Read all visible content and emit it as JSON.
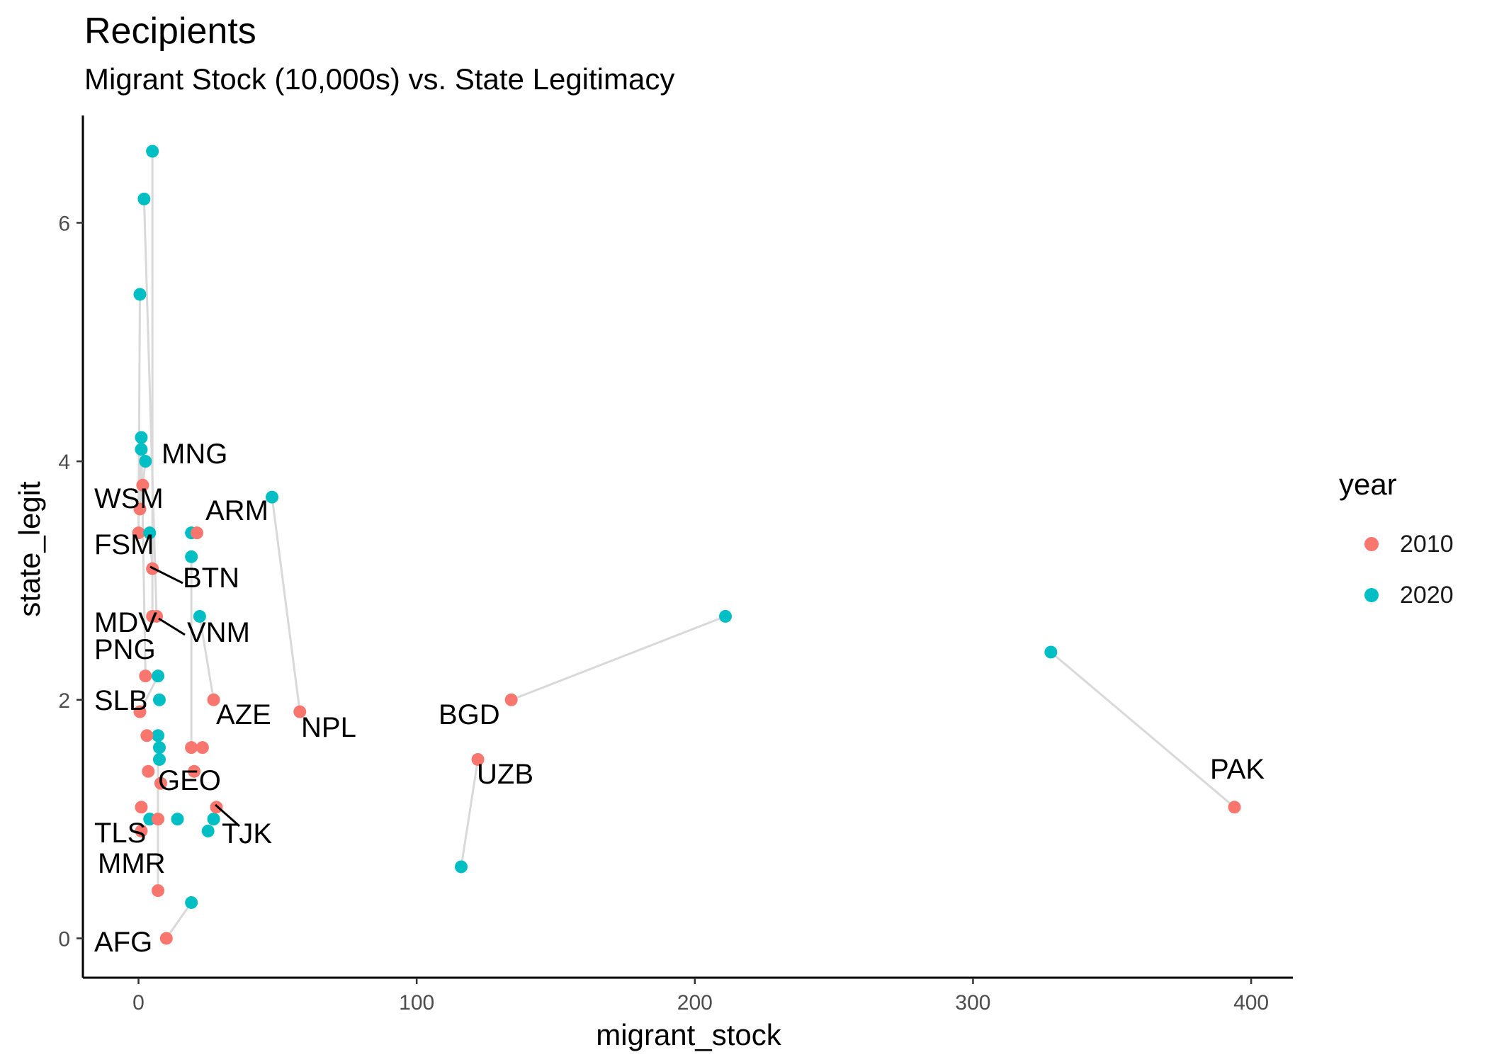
{
  "chart_data": {
    "type": "scatter",
    "title": "Recipients",
    "subtitle": "Migrant Stock (10,000s) vs. State Legitimacy",
    "xlabel": "migrant_stock",
    "ylabel": "state_legit",
    "xlim": [
      -20,
      415
    ],
    "ylim": [
      -0.33,
      6.9
    ],
    "x_ticks": [
      0,
      100,
      200,
      300,
      400
    ],
    "y_ticks": [
      0,
      2,
      4,
      6
    ],
    "legend": {
      "title": "year",
      "position": "right"
    },
    "series": [
      {
        "name": "2010",
        "color": "#F8766D"
      },
      {
        "name": "2020",
        "color": "#00BFC4"
      }
    ],
    "countries": [
      {
        "label": "MNG",
        "p2010": [
          1.5,
          3.8
        ],
        "p2020": [
          2.5,
          4.0
        ]
      },
      {
        "label": "WSM",
        "p2010": [
          0,
          3.4
        ],
        "p2020": [
          0.5,
          5.4
        ]
      },
      {
        "label": "ARM",
        "p2010": [
          21,
          3.4
        ],
        "p2020": [
          19,
          3.4
        ]
      },
      {
        "label": "FSM",
        "p2010": [
          0.5,
          3.6
        ],
        "p2020": [
          1,
          4.1
        ]
      },
      {
        "label": "BTN",
        "p2010": [
          5,
          3.1
        ],
        "p2020": [
          4,
          3.4
        ]
      },
      {
        "label": "MDV",
        "p2010": [
          5,
          2.7
        ],
        "p2020": [
          5,
          6.6
        ]
      },
      {
        "label": "VNM",
        "p2010": [
          6.5,
          2.7
        ],
        "p2020": [
          2,
          6.2
        ]
      },
      {
        "label": "PNG",
        "p2010": [
          2.5,
          2.2
        ],
        "p2020": [
          1,
          4.2
        ]
      },
      {
        "label": "SLB",
        "p2010": [
          0.5,
          1.9
        ],
        "p2020": [
          7,
          2.2
        ]
      },
      {
        "label": "AZE",
        "p2010": [
          27,
          2.0
        ],
        "p2020": [
          22,
          2.7
        ]
      },
      {
        "label": "NPL",
        "p2010": [
          58,
          1.9
        ],
        "p2020": [
          48,
          3.7
        ]
      },
      {
        "label": "BGD",
        "p2010": [
          134,
          2.0
        ],
        "p2020": [
          211,
          2.7
        ]
      },
      {
        "label": "UZB",
        "p2010": [
          122,
          1.5
        ],
        "p2020": [
          116,
          0.6
        ]
      },
      {
        "label": "PAK",
        "p2010": [
          394,
          1.1
        ],
        "p2020": [
          328,
          2.4
        ]
      },
      {
        "label": "GEO",
        "p2010": [
          19,
          1.6
        ],
        "p2020": [
          19,
          3.2
        ]
      },
      {
        "label": "TJK",
        "p2010": [
          28,
          1.1
        ],
        "p2020": [
          27,
          1.0
        ]
      },
      {
        "label": "TLS",
        "p2010": [
          1,
          0.9
        ],
        "p2020": [
          4,
          1.0
        ]
      },
      {
        "label": "MMR",
        "p2010": [
          7,
          0.4
        ],
        "p2020": [
          7,
          1.7
        ]
      },
      {
        "label": "AFG",
        "p2010": [
          10,
          0.0
        ],
        "p2020": [
          19,
          0.3
        ]
      }
    ],
    "extra_points": [
      {
        "year": "2010",
        "x": 3,
        "y": 1.7
      },
      {
        "year": "2010",
        "x": 3.5,
        "y": 1.4
      },
      {
        "year": "2010",
        "x": 8,
        "y": 1.3
      },
      {
        "year": "2010",
        "x": 7,
        "y": 1.0
      },
      {
        "year": "2010",
        "x": 20,
        "y": 1.4
      },
      {
        "year": "2010",
        "x": 23,
        "y": 1.6
      },
      {
        "year": "2010",
        "x": 1,
        "y": 1.1
      },
      {
        "year": "2020",
        "x": 7.5,
        "y": 2.0
      },
      {
        "year": "2020",
        "x": 7.5,
        "y": 1.6
      },
      {
        "year": "2020",
        "x": 7.5,
        "y": 1.5
      },
      {
        "year": "2020",
        "x": 14,
        "y": 1.0
      },
      {
        "year": "2020",
        "x": 25,
        "y": 0.9
      }
    ]
  }
}
